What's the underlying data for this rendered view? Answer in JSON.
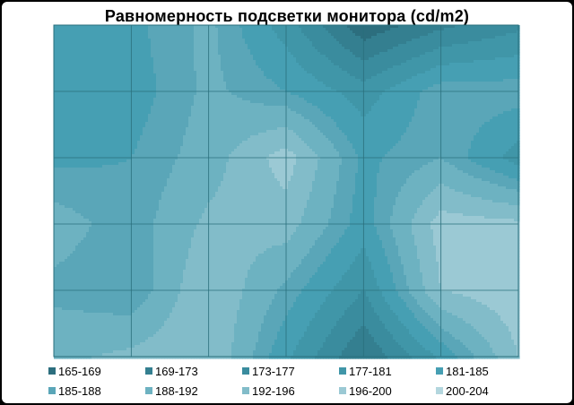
{
  "chart_data": {
    "type": "heatmap",
    "title": "Равномерность  подсветки монитора (cd/m2)",
    "xlabel": "",
    "ylabel": "",
    "grid": true,
    "legend_position": "bottom",
    "bands": [
      {
        "label": "165-169",
        "min": 165,
        "max": 169,
        "color": "#2c6e7e"
      },
      {
        "label": "169-173",
        "min": 169,
        "max": 173,
        "color": "#347f90"
      },
      {
        "label": "173-177",
        "min": 173,
        "max": 177,
        "color": "#3a8c9e"
      },
      {
        "label": "177-181",
        "min": 177,
        "max": 181,
        "color": "#4096a8"
      },
      {
        "label": "181-185",
        "min": 181,
        "max": 185,
        "color": "#469fb3"
      },
      {
        "label": "185-188",
        "min": 185,
        "max": 188,
        "color": "#5aa6b8"
      },
      {
        "label": "188-192",
        "min": 188,
        "max": 192,
        "color": "#6db2c1"
      },
      {
        "label": "192-196",
        "min": 192,
        "max": 196,
        "color": "#82bcc9"
      },
      {
        "label": "196-200",
        "min": 196,
        "max": 200,
        "color": "#9bc9d4"
      },
      {
        "label": "200-204",
        "min": 200,
        "max": 204,
        "color": "#b3d6de"
      }
    ],
    "values": [
      [
        183,
        184,
        189,
        179,
        166,
        172,
        176
      ],
      [
        184,
        183,
        189,
        185,
        179,
        187,
        187
      ],
      [
        184,
        185,
        190,
        198,
        184,
        188,
        179
      ],
      [
        190,
        186,
        193,
        194,
        183,
        198,
        197
      ],
      [
        187,
        185,
        196,
        187,
        177,
        196,
        199
      ],
      [
        191,
        193,
        196,
        182,
        169,
        182,
        196
      ]
    ]
  }
}
